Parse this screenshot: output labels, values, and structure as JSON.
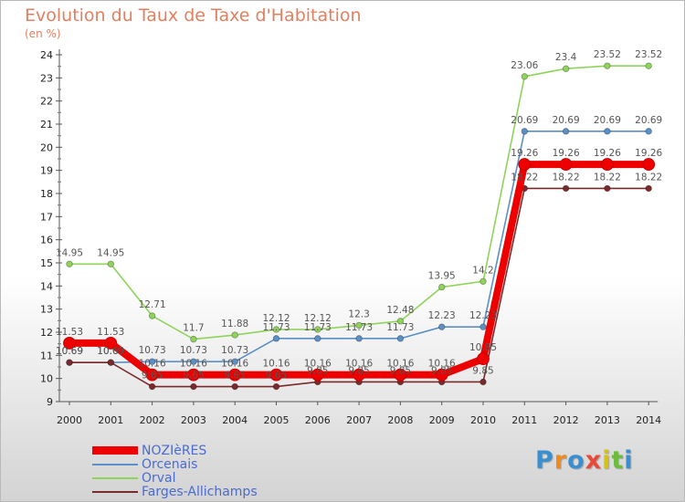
{
  "title": "Evolution du Taux de Taxe d'Habitation",
  "subtitle": "(en %)",
  "logo": {
    "text": "Proxiti",
    "letter_colors": [
      "#3a8fd0",
      "#f08a1e",
      "#3a8fd0",
      "#e84a3a",
      "#d6c20e",
      "#6bbd3a",
      "#3a8fd0"
    ]
  },
  "chart_data": {
    "type": "line",
    "x": [
      "2000",
      "2001",
      "2002",
      "2003",
      "2004",
      "2005",
      "2006",
      "2007",
      "2008",
      "2009",
      "2010",
      "2011",
      "2012",
      "2013",
      "2014"
    ],
    "ylim": [
      9,
      24
    ],
    "yticks": [
      9,
      10,
      11,
      12,
      13,
      14,
      15,
      16,
      17,
      18,
      19,
      20,
      21,
      22,
      23,
      24
    ],
    "grid": false,
    "legend_position": "bottom-left",
    "series": [
      {
        "name": "NOZIèRES",
        "color": "#ee0000",
        "emphasis": true,
        "values": [
          11.53,
          11.53,
          10.16,
          10.16,
          10.16,
          10.16,
          10.16,
          10.16,
          10.16,
          10.16,
          10.85,
          19.26,
          19.26,
          19.26,
          19.26
        ],
        "labels": [
          "11.53",
          "11.53",
          "10.16",
          "10.16",
          "10.16",
          "10.16",
          "10.16",
          "10.16",
          "10.16",
          "10.16",
          "10.85",
          "19.26",
          "19.26",
          "19.26",
          "19.26"
        ]
      },
      {
        "name": "Orcenais",
        "color": "#5b8fc7",
        "values": [
          10.69,
          10.69,
          10.73,
          10.73,
          10.73,
          11.73,
          11.73,
          11.73,
          11.73,
          12.23,
          12.23,
          20.69,
          20.69,
          20.69,
          20.69
        ],
        "labels": [
          "10.69",
          "10.69",
          "10.73",
          "10.73",
          "10.73",
          "11.73",
          "11.73",
          "11.73",
          "11.73",
          "12.23",
          "12.23",
          "20.69",
          "20.69",
          "20.69",
          "20.69"
        ]
      },
      {
        "name": "Orval",
        "color": "#8fd45a",
        "values": [
          14.95,
          14.95,
          12.71,
          11.7,
          11.88,
          12.12,
          12.12,
          12.3,
          12.48,
          13.95,
          14.2,
          23.06,
          23.4,
          23.52,
          23.52
        ],
        "labels": [
          "14.95",
          "14.95",
          "12.71",
          "11.7",
          "11.88",
          "12.12",
          "12.12",
          "12.3",
          "12.48",
          "13.95",
          "14.2",
          "23.06",
          "23.4",
          "23.52",
          "23.52"
        ]
      },
      {
        "name": "Farges-Allichamps",
        "color": "#7a2a2a",
        "values": [
          10.69,
          10.69,
          9.65,
          9.65,
          9.65,
          9.65,
          9.85,
          9.85,
          9.85,
          9.85,
          9.85,
          18.22,
          18.22,
          18.22,
          18.22
        ],
        "labels": [
          "10.69",
          "10.69",
          "9.65",
          "9.65",
          "9.65",
          "9.65",
          "9.85",
          "9.85",
          "9.85",
          "9.85",
          "9.85",
          "18.22",
          "18.22",
          "18.22",
          "18.22"
        ]
      }
    ]
  }
}
